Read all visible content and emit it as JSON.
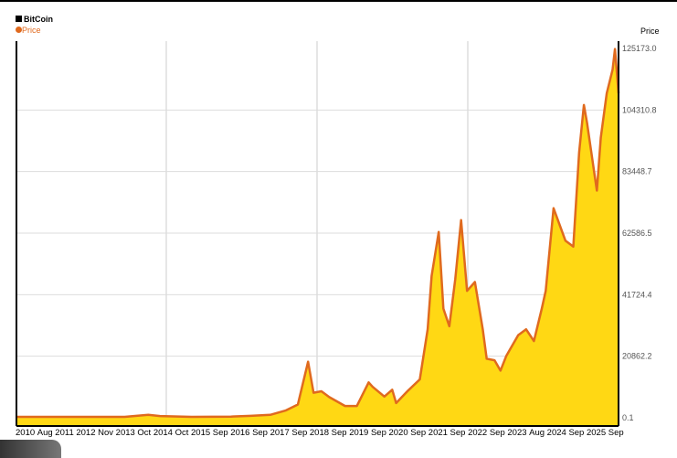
{
  "chart_data": {
    "type": "area",
    "title": "BitCoin",
    "legend": [
      {
        "name": "Price",
        "color": "#e06a1e"
      }
    ],
    "ylabel": "Price",
    "ylim": [
      0.1,
      125173.0
    ],
    "yticks": [
      "125173.0",
      "104310.8",
      "83448.7",
      "62586.5",
      "41724.4",
      "20862.2",
      "0.1"
    ],
    "ytick_values": [
      125173.0,
      104310.8,
      83448.7,
      62586.5,
      41724.4,
      20862.2,
      0.1
    ],
    "xlim": [
      2010.55,
      2025.85
    ],
    "xtick_labels": [
      "2010",
      "Aug",
      "2011",
      "2012",
      "Nov",
      "2013",
      "Oct",
      "2014",
      "Oct",
      "2015",
      "Sep",
      "2016",
      "Sep",
      "2017",
      "Sep",
      "2018",
      "Sep",
      "2019",
      "Sep",
      "2020",
      "Sep",
      "2021",
      "Sep",
      "2022",
      "Sep",
      "2023",
      "Aug",
      "2024",
      "Sep",
      "2025",
      "Sep"
    ],
    "grid": true,
    "fill_color": "#ffd814",
    "line_color": "#e06a1e",
    "series": [
      {
        "name": "Price",
        "x": [
          2010.55,
          2011.0,
          2011.45,
          2012.0,
          2013.0,
          2013.3,
          2013.9,
          2014.2,
          2015.0,
          2016.0,
          2016.5,
          2017.0,
          2017.4,
          2017.7,
          2017.96,
          2018.1,
          2018.3,
          2018.5,
          2018.9,
          2019.2,
          2019.5,
          2019.6,
          2019.9,
          2020.1,
          2020.2,
          2020.5,
          2020.8,
          2021.0,
          2021.1,
          2021.28,
          2021.4,
          2021.55,
          2021.7,
          2021.85,
          2022.0,
          2022.2,
          2022.4,
          2022.5,
          2022.7,
          2022.85,
          2023.0,
          2023.3,
          2023.5,
          2023.7,
          2023.9,
          2024.0,
          2024.2,
          2024.5,
          2024.7,
          2024.85,
          2024.97,
          2025.05,
          2025.3,
          2025.4,
          2025.55,
          2025.7,
          2025.76,
          2025.85
        ],
        "y": [
          0.07,
          0.3,
          15,
          5,
          13,
          130,
          1000,
          600,
          250,
          400,
          650,
          1000,
          2500,
          4500,
          19000,
          8500,
          9000,
          7000,
          4000,
          4000,
          12000,
          10500,
          7200,
          9500,
          5000,
          9200,
          13000,
          30000,
          48000,
          63000,
          37000,
          31000,
          47000,
          67000,
          43000,
          46000,
          30000,
          20000,
          19500,
          16000,
          21000,
          28000,
          30000,
          26000,
          37000,
          43000,
          71000,
          60000,
          58000,
          90000,
          106000,
          100000,
          77000,
          95000,
          110000,
          118000,
          125000,
          110000
        ]
      }
    ]
  }
}
